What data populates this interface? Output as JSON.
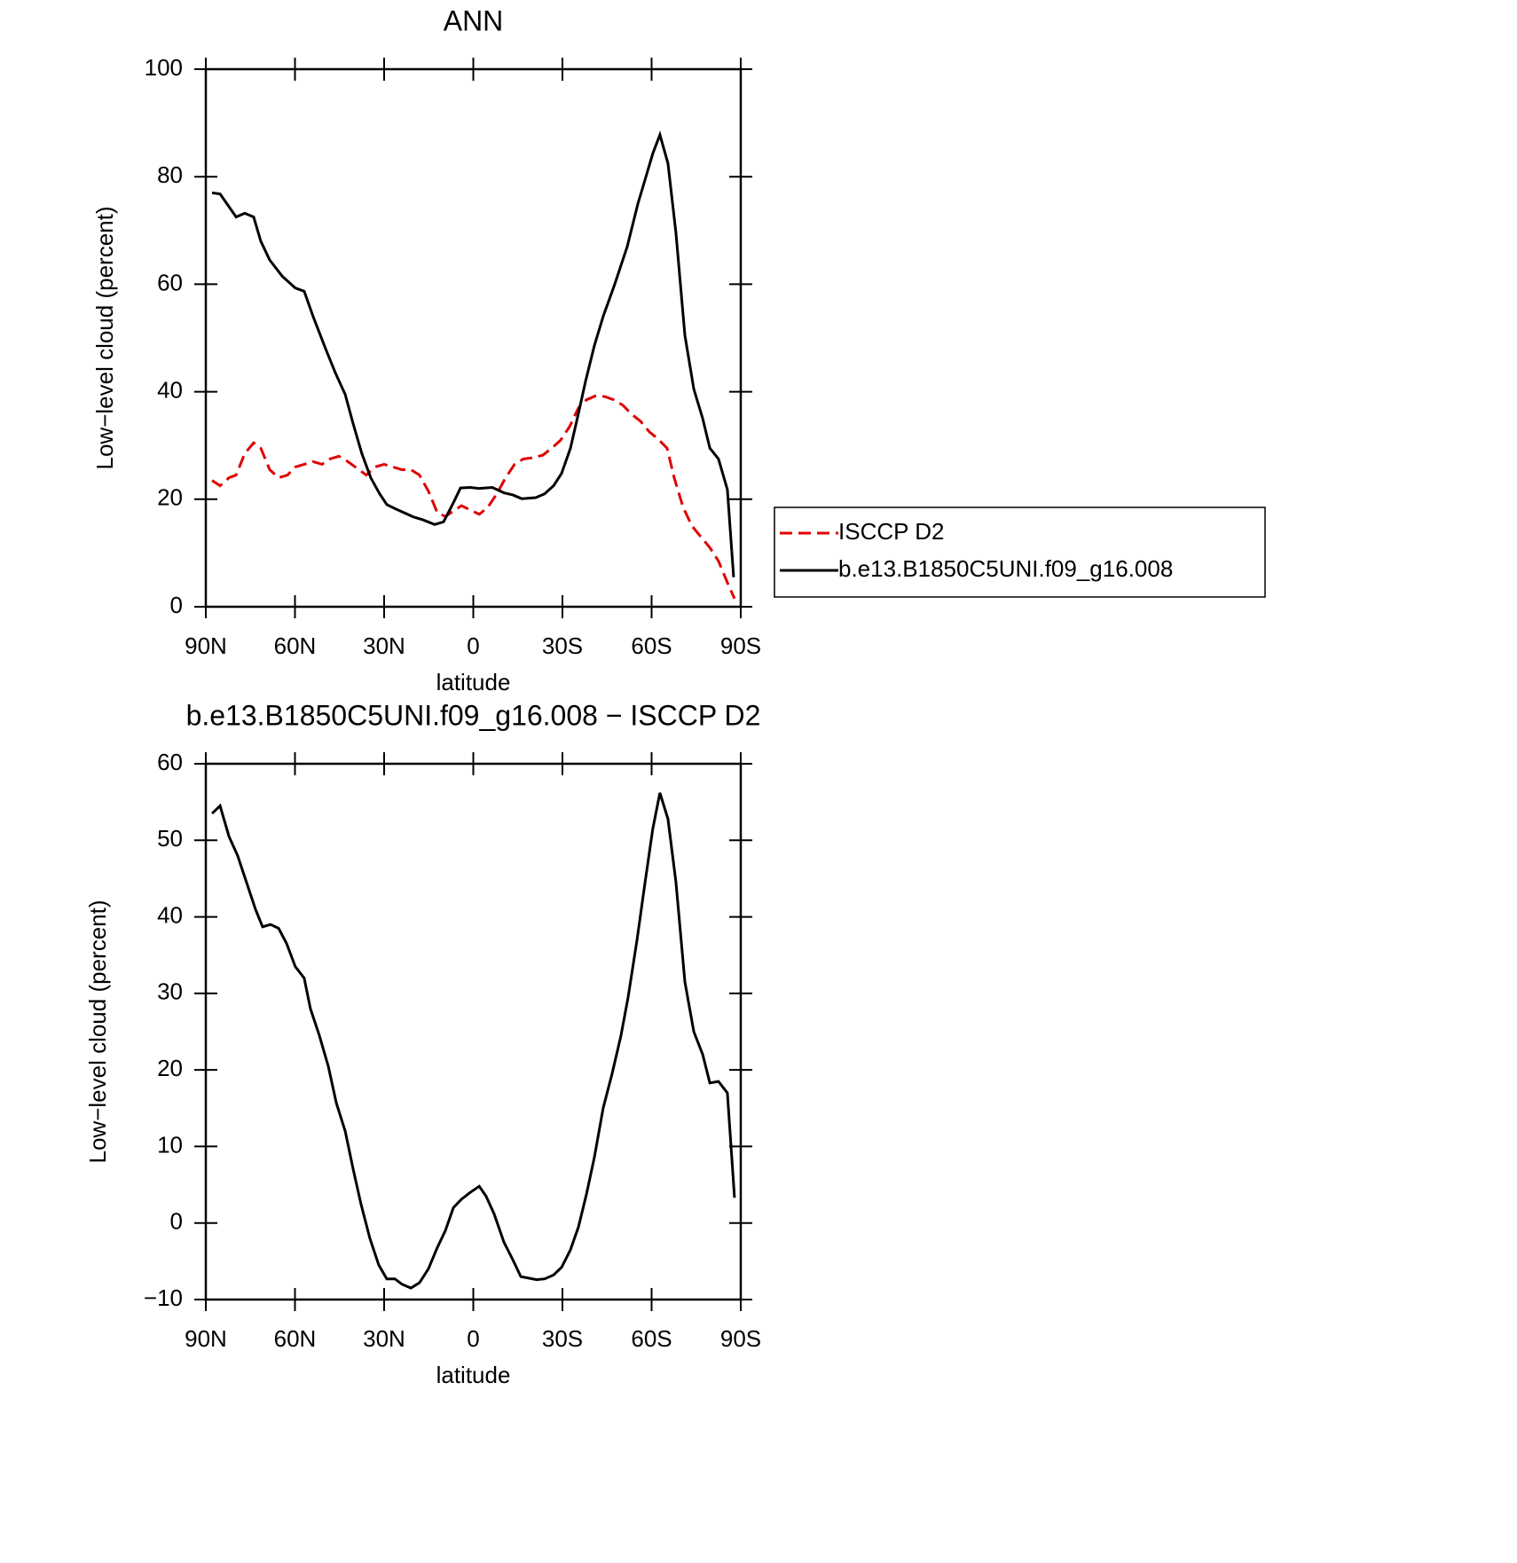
{
  "chart_data": [
    {
      "type": "line",
      "title": "ANN",
      "x_label": "latitude",
      "y_label": "Low−level cloud (percent)",
      "xlim": [
        90,
        -90
      ],
      "xticks": [
        {
          "value": 90,
          "label": "90N"
        },
        {
          "value": 60,
          "label": "60N"
        },
        {
          "value": 30,
          "label": "30N"
        },
        0,
        {
          "value": -30,
          "label": "30S"
        },
        {
          "value": -60,
          "label": "60S"
        },
        {
          "value": -90,
          "label": "90S"
        }
      ],
      "ylim": [
        0,
        100
      ],
      "yticks": [
        0,
        20,
        40,
        60,
        80,
        100
      ],
      "legend": "right",
      "series": [
        {
          "name": "ISCCP D2",
          "color": "#e00000",
          "dash": true,
          "x": [
            87.9,
            85.2,
            82.2,
            79.8,
            76.9,
            73.9,
            71.5,
            68.5,
            65.5,
            62.5,
            59.9,
            56.9,
            53.9,
            50.9,
            48.2,
            45.2,
            42.2,
            39.0,
            36.0,
            33.0,
            30.0,
            27.0,
            24.0,
            21.0,
            18.1,
            15.1,
            12.1,
            9.4,
            6.7,
            4.0,
            1.0,
            -2.0,
            -4.9,
            -7.9,
            -10.9,
            -13.9,
            -16.9,
            -19.9,
            -23.4,
            -26.4,
            -29.4,
            -32.4,
            -35.4,
            -38.1,
            -41.0,
            -44.3,
            -47.3,
            -50.3,
            -53.3,
            -56.3,
            -59.3,
            -62.2,
            -65.2,
            -67.6,
            -70.6,
            -73.6,
            -76.6,
            -79.6,
            -82.5,
            -85.5,
            -87.9
          ],
          "values": [
            23.5,
            22.5,
            24,
            24.5,
            28.5,
            30.5,
            29.5,
            25.5,
            24,
            24.5,
            26,
            26.5,
            27,
            26.5,
            27.5,
            28,
            27,
            25.7,
            24.5,
            26,
            26.5,
            26,
            25.5,
            25.5,
            24.5,
            21.5,
            17.5,
            16.8,
            17.8,
            18.8,
            18,
            17.2,
            18.5,
            21,
            24,
            26.5,
            27.5,
            27.7,
            28.2,
            29.5,
            31,
            33.5,
            37,
            38.5,
            39.2,
            39.1,
            38.5,
            37.5,
            35.8,
            34.5,
            32.5,
            31.2,
            29.5,
            24,
            18.5,
            15,
            13,
            11,
            8.5,
            4.5,
            1.5
          ]
        },
        {
          "name": "b.e13.B1850C5UNI.f09_g16.008",
          "color": "#000000",
          "dash": false,
          "x": [
            87.9,
            85.2,
            79.8,
            76.9,
            73.9,
            71.5,
            68.5,
            64.3,
            59.9,
            56.9,
            53.9,
            49.7,
            46.4,
            43.1,
            40.4,
            37.5,
            34.5,
            31.5,
            29.1,
            26.1,
            20.1,
            17.1,
            13.0,
            10.0,
            7.0,
            4.3,
            1.0,
            -2.0,
            -6.4,
            -10.3,
            -13.3,
            -16.3,
            -21.0,
            -24.0,
            -27.0,
            -29.7,
            -32.7,
            -35.4,
            -37.8,
            -40.7,
            -43.7,
            -47.6,
            -51.8,
            -55.4,
            -58.1,
            -60.4,
            -62.8,
            -65.5,
            -68.2,
            -71.2,
            -74.2,
            -77.2,
            -79.6,
            -82.5,
            -85.5,
            -87.6
          ],
          "values": [
            77,
            76.8,
            72.5,
            73.2,
            72.5,
            68,
            64.5,
            61.5,
            59.3,
            58.7,
            54,
            48,
            43.5,
            39.5,
            34,
            28.5,
            24,
            21,
            19,
            18.2,
            16.7,
            16.2,
            15.3,
            15.8,
            19,
            22.1,
            22.2,
            22,
            22.2,
            21.2,
            20.8,
            20.1,
            20.3,
            21,
            22.5,
            24.8,
            29.5,
            36,
            42,
            48.5,
            54,
            60,
            67,
            75,
            80,
            84.3,
            87.8,
            82.5,
            69.5,
            50.5,
            40.5,
            35,
            29.5,
            27.5,
            21.8,
            5.5
          ]
        }
      ]
    },
    {
      "type": "line",
      "title": "b.e13.B1850C5UNI.f09_g16.008 − ISCCP D2",
      "x_label": "latitude",
      "y_label": "Low−level cloud (percent)",
      "xlim": [
        90,
        -90
      ],
      "xticks": [
        {
          "value": 90,
          "label": "90N"
        },
        {
          "value": 60,
          "label": "60N"
        },
        {
          "value": 30,
          "label": "30N"
        },
        0,
        {
          "value": -30,
          "label": "30S"
        },
        {
          "value": -60,
          "label": "60S"
        },
        {
          "value": -90,
          "label": "90S"
        }
      ],
      "ylim": [
        -10,
        60
      ],
      "yticks": [
        {
          "value": -10,
          "label": "−10"
        },
        0,
        10,
        20,
        30,
        40,
        50,
        60
      ],
      "series": [
        {
          "color": "#000000",
          "dash": false,
          "x": [
            87.9,
            85.2,
            82.2,
            79.3,
            76.3,
            73.3,
            70.9,
            68.2,
            65.5,
            62.8,
            59.9,
            56.9,
            54.8,
            51.8,
            48.8,
            46.1,
            43.1,
            40.4,
            37.8,
            34.8,
            31.8,
            29.1,
            26.4,
            24.0,
            21.0,
            18.1,
            15.1,
            12.1,
            9.4,
            6.7,
            4.0,
            1.0,
            -2.0,
            -4.3,
            -7.0,
            -10.3,
            -13.3,
            -16.0,
            -21.3,
            -24.0,
            -27.0,
            -29.7,
            -32.7,
            -35.4,
            -38.1,
            -40.7,
            -43.7,
            -46.7,
            -49.7,
            -52.1,
            -55.1,
            -57.8,
            -60.4,
            -62.8,
            -65.5,
            -68.2,
            -71.2,
            -74.2,
            -77.2,
            -79.6,
            -82.5,
            -85.5,
            -87.9
          ],
          "values": [
            53.5,
            54.5,
            50.5,
            48,
            44.5,
            41,
            38.7,
            39,
            38.5,
            36.5,
            33.5,
            32,
            28,
            24.5,
            20.5,
            15.7,
            12,
            7,
            2.5,
            -2,
            -5.5,
            -7.3,
            -7.3,
            -8,
            -8.5,
            -7.8,
            -6,
            -3.2,
            -1,
            2,
            3.1,
            4,
            4.8,
            3.5,
            1.2,
            -2.5,
            -4.8,
            -7,
            -7.4,
            -7.3,
            -6.8,
            -5.8,
            -3.5,
            -0.5,
            3.8,
            8.5,
            15,
            19.5,
            24.5,
            29.5,
            37,
            44.5,
            51.5,
            56.2,
            52.8,
            44.5,
            31.5,
            25,
            22,
            18.3,
            18.5,
            17,
            3.3
          ]
        }
      ]
    }
  ]
}
